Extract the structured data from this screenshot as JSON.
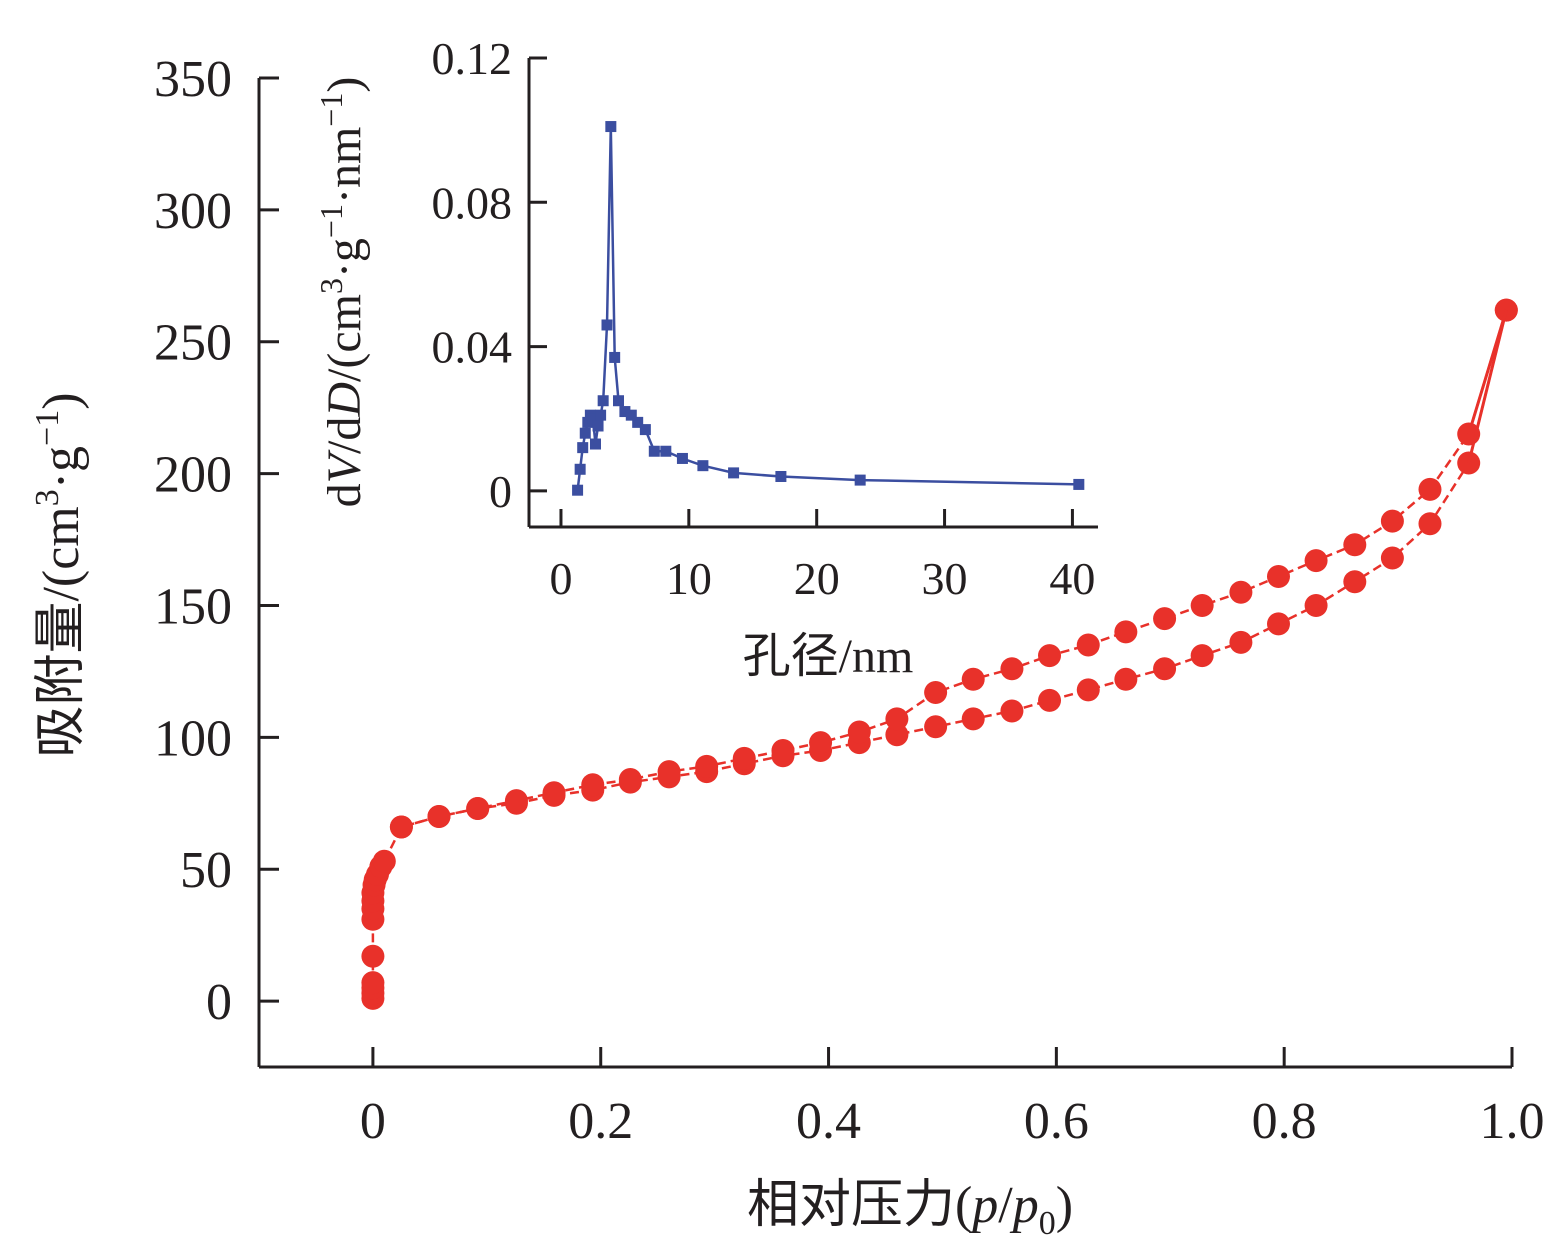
{
  "chart_data": [
    {
      "type": "line",
      "xlabel": "相对压力(p/p0)",
      "xlabel_parts": {
        "main": "相对压力(",
        "p": "p",
        "slash": "/",
        "p0": "p",
        "sub0": "0",
        "close": ")"
      },
      "ylabel": "吸附量/(cm3·g−1)",
      "ylabel_parts": {
        "main": "吸附量/(cm",
        "sup3": "3",
        "mid": "·g",
        "supneg1": "−1",
        "close": ")"
      },
      "xlim": [
        -0.1,
        1.0
      ],
      "ylim": [
        -25,
        350
      ],
      "xticks": [
        0,
        0.2,
        0.4,
        0.6,
        0.8,
        1.0
      ],
      "xtick_labels": [
        "0",
        "0.2",
        "0.4",
        "0.6",
        "0.8",
        "1.0"
      ],
      "yticks": [
        0,
        50,
        100,
        150,
        200,
        250,
        300,
        350
      ],
      "ytick_labels": [
        "0",
        "50",
        "100",
        "150",
        "200",
        "250",
        "300",
        "350"
      ],
      "color": "#e8312a",
      "series": [
        {
          "x": [
            0.0,
            0.0,
            0.0,
            0.0,
            0.0,
            0.0,
            0.0,
            0.0,
            0.0,
            0.001,
            0.002,
            0.004,
            0.007,
            0.01,
            0.025,
            0.058,
            0.092,
            0.126,
            0.159,
            0.193,
            0.226,
            0.26,
            0.293,
            0.326,
            0.36,
            0.393,
            0.427,
            0.46,
            0.494,
            0.527,
            0.561,
            0.594,
            0.628,
            0.661,
            0.695,
            0.728,
            0.762,
            0.795,
            0.828,
            0.862,
            0.895,
            0.928,
            0.962,
            0.995
          ],
          "values": [
            1,
            3,
            5,
            7,
            17,
            31,
            35,
            38,
            41,
            44,
            46,
            48,
            51,
            53,
            66,
            70,
            73,
            75,
            78,
            80,
            83,
            85,
            87,
            90,
            93,
            95,
            98,
            101,
            104,
            107,
            110,
            114,
            118,
            122,
            126,
            131,
            136,
            143,
            150,
            159,
            168,
            181,
            204,
            262
          ]
        },
        {
          "x": [
            0.025,
            0.058,
            0.092,
            0.126,
            0.159,
            0.193,
            0.226,
            0.26,
            0.293,
            0.326,
            0.36,
            0.393,
            0.427,
            0.46,
            0.494,
            0.527,
            0.561,
            0.594,
            0.628,
            0.661,
            0.695,
            0.728,
            0.762,
            0.795,
            0.828,
            0.862,
            0.895,
            0.928,
            0.962,
            0.995
          ],
          "values": [
            66,
            70,
            73,
            76,
            79,
            82,
            84,
            87,
            89,
            92,
            95,
            98,
            102,
            107,
            117,
            122,
            126,
            131,
            135,
            140,
            145,
            150,
            155,
            161,
            167,
            173,
            182,
            194,
            215,
            262
          ]
        }
      ]
    },
    {
      "type": "line",
      "xlabel": "孔径/nm",
      "ylabel": "dV/dD/(cm3·g−1·nm−1)",
      "ylabel_parts": {
        "d1": "d",
        "V": "V",
        "slash1": "/d",
        "D": "D",
        "open": "/(cm",
        "sup3": "3",
        "mid": "·g",
        "supneg1a": "−1",
        "mid2": "·nm",
        "supneg1b": "−1",
        "close": ")"
      },
      "xlim": [
        -2.5,
        42
      ],
      "ylim": [
        -0.01,
        0.12
      ],
      "xticks": [
        0,
        10,
        20,
        30,
        40
      ],
      "xtick_labels": [
        "0",
        "10",
        "20",
        "30",
        "40"
      ],
      "yticks": [
        0,
        0.04,
        0.08,
        0.12
      ],
      "ytick_labels": [
        "0",
        "0.04",
        "0.08",
        "0.12"
      ],
      "color": "#3b4ea0",
      "series": [
        {
          "x": [
            1.3,
            1.5,
            1.7,
            1.9,
            2.1,
            2.3,
            2.5,
            2.7,
            2.9,
            3.1,
            3.3,
            3.6,
            3.9,
            4.2,
            4.5,
            5.0,
            5.5,
            6.0,
            6.6,
            7.3,
            8.2,
            9.5,
            11.1,
            13.5,
            17.2,
            23.4,
            40.5
          ],
          "values": [
            0.0002,
            0.006,
            0.012,
            0.016,
            0.019,
            0.021,
            0.02,
            0.013,
            0.018,
            0.021,
            0.025,
            0.046,
            0.101,
            0.037,
            0.025,
            0.022,
            0.021,
            0.019,
            0.017,
            0.011,
            0.011,
            0.009,
            0.007,
            0.005,
            0.004,
            0.003,
            0.0018
          ]
        }
      ]
    }
  ]
}
